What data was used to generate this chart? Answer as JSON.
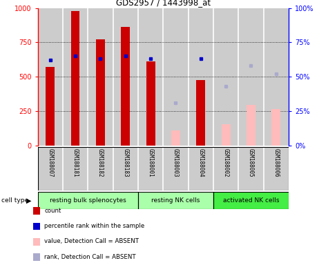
{
  "title": "GDS2957 / 1443998_at",
  "samples": [
    "GSM188007",
    "GSM188181",
    "GSM188182",
    "GSM188183",
    "GSM188001",
    "GSM188003",
    "GSM188004",
    "GSM188002",
    "GSM188005",
    "GSM188006"
  ],
  "bar_values": [
    570,
    980,
    770,
    860,
    610,
    null,
    475,
    null,
    null,
    null
  ],
  "bar_absent_values": [
    null,
    null,
    null,
    null,
    null,
    110,
    null,
    155,
    295,
    265
  ],
  "blue_squares": [
    62,
    65,
    63,
    65,
    63,
    null,
    63,
    null,
    null,
    null
  ],
  "blue_squares_absent": [
    null,
    null,
    null,
    null,
    null,
    31,
    null,
    43,
    58,
    52
  ],
  "group_spans": [
    {
      "label": "resting bulk splenocytes",
      "color": "#aaffaa",
      "start": 0,
      "end": 3
    },
    {
      "label": "resting NK cells",
      "color": "#aaffaa",
      "start": 4,
      "end": 6
    },
    {
      "label": "activated NK cells",
      "color": "#44ee44",
      "start": 7,
      "end": 9
    }
  ],
  "ylim_left": [
    0,
    1000
  ],
  "ylim_right": [
    0,
    100
  ],
  "bar_color": "#cc0000",
  "bar_absent_color": "#ffbbbb",
  "blue_color": "#0000cc",
  "blue_absent_color": "#aaaacc",
  "bg_color": "#cccccc",
  "plot_bg": "#ffffff",
  "legend_items": [
    {
      "color": "#cc0000",
      "label": "count"
    },
    {
      "color": "#0000cc",
      "label": "percentile rank within the sample"
    },
    {
      "color": "#ffbbbb",
      "label": "value, Detection Call = ABSENT"
    },
    {
      "color": "#aaaacc",
      "label": "rank, Detection Call = ABSENT"
    }
  ]
}
